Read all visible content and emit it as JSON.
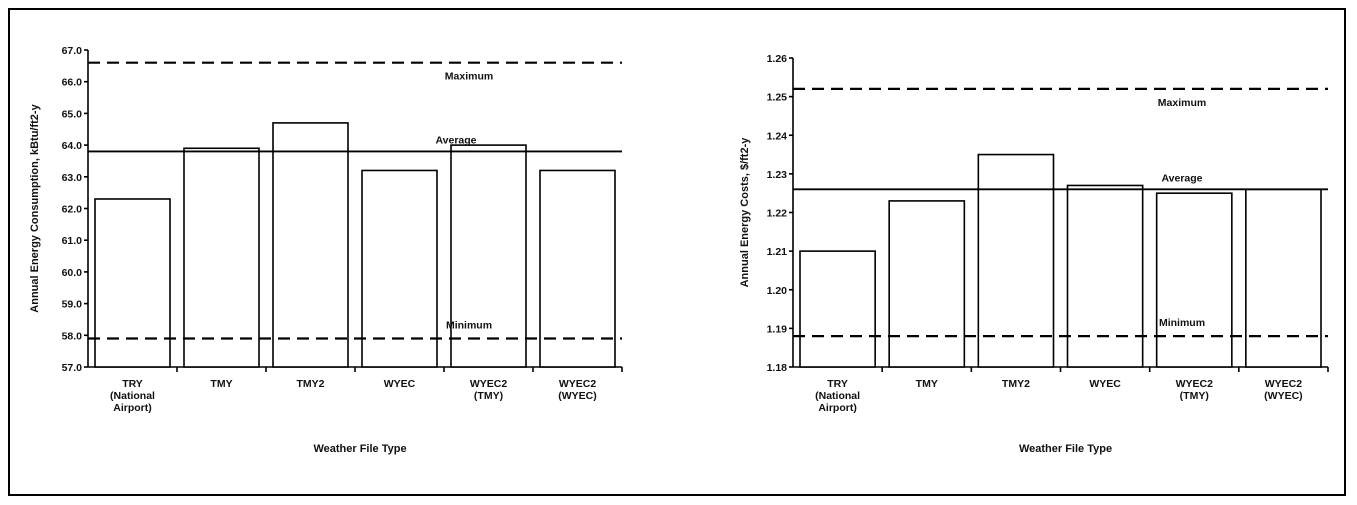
{
  "chart_data": [
    {
      "type": "bar",
      "categories": [
        "TRY\n(National\nAirport)",
        "TMY",
        "TMY2",
        "WYEC",
        "WYEC2\n(TMY)",
        "WYEC2\n(WYEC)"
      ],
      "values": [
        62.3,
        63.9,
        64.7,
        63.2,
        64.0,
        63.2
      ],
      "ylim": [
        57.0,
        67.0
      ],
      "yticks": [
        "57.0",
        "58.0",
        "59.0",
        "60.0",
        "61.0",
        "62.0",
        "63.0",
        "64.0",
        "65.0",
        "66.0",
        "67.0"
      ],
      "xlabel": "Weather File Type",
      "ylabel": "Annual Energy Consumption, kBtu/ft2-y",
      "reference_lines": [
        {
          "label": "Maximum",
          "value": 66.6,
          "style": "dashed"
        },
        {
          "label": "Average",
          "value": 63.8,
          "style": "solid"
        },
        {
          "label": "Minimum",
          "value": 57.9,
          "style": "dashed"
        }
      ],
      "grid": false
    },
    {
      "type": "bar",
      "categories": [
        "TRY\n(National\nAirport)",
        "TMY",
        "TMY2",
        "WYEC",
        "WYEC2\n(TMY)",
        "WYEC2\n(WYEC)"
      ],
      "values": [
        1.21,
        1.223,
        1.235,
        1.227,
        1.225,
        1.226
      ],
      "ylim": [
        1.18,
        1.26
      ],
      "yticks": [
        "1.18",
        "1.19",
        "1.20",
        "1.21",
        "1.22",
        "1.23",
        "1.24",
        "1.25",
        "1.26"
      ],
      "xlabel": "Weather File Type",
      "ylabel": "Annual Energy Costs, $/ft2-y",
      "reference_lines": [
        {
          "label": "Maximum",
          "value": 1.252,
          "style": "dashed"
        },
        {
          "label": "Average",
          "value": 1.226,
          "style": "solid"
        },
        {
          "label": "Minimum",
          "value": 1.188,
          "style": "dashed"
        }
      ],
      "grid": false
    }
  ]
}
